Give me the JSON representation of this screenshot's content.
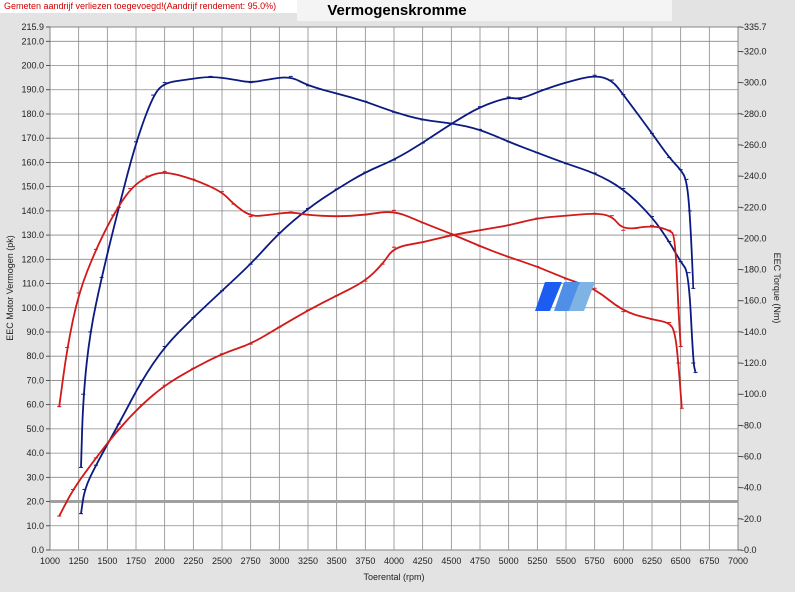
{
  "chart_data": {
    "type": "line",
    "title": "Vermogenskromme",
    "note": "Gemeten aandrijf verliezen toegevoegd!(Aandrijf rendement: 95.0%)",
    "xlabel": "Toerental (rpm)",
    "ylabel_left": "EEC Motor Vermogen (pk)",
    "ylabel_right": "EEC Torque (Nm)",
    "xlim": [
      1000,
      7000
    ],
    "ylim_left": [
      0,
      215.9
    ],
    "ylim_right": [
      0,
      335.7
    ],
    "x_ticks": [
      "1000",
      "1250",
      "1500",
      "1750",
      "2000",
      "2250",
      "2500",
      "2750",
      "3000",
      "3250",
      "3500",
      "3750",
      "4000",
      "4250",
      "4500",
      "4750",
      "5000",
      "5250",
      "5500",
      "5750",
      "6000",
      "6250",
      "6500",
      "6750",
      "7000"
    ],
    "y_ticks_left": [
      "215.9",
      "210.0",
      "200.0",
      "190.0",
      "180.0",
      "170.0",
      "160.0",
      "150.0",
      "140.0",
      "130.0",
      "120.0",
      "110.0",
      "100.0",
      "90.0",
      "80.0",
      "70.0",
      "60.0",
      "50.0",
      "40.0",
      "30.0",
      "20.0",
      "10.0",
      "0.0"
    ],
    "y_ticks_right": [
      "335.7",
      "320.0",
      "300.0",
      "280.0",
      "260.0",
      "240.0",
      "220.0",
      "200.0",
      "180.0",
      "160.0",
      "140.0",
      "120.0",
      "100.0",
      "80.0",
      "60.0",
      "40.0",
      "20.0",
      "0.0"
    ],
    "reference_line_left": 20,
    "grid": true,
    "series": [
      {
        "axis": "right",
        "color": "#0a1a80",
        "values": [
          [
            1270,
            53
          ],
          [
            1290,
            100
          ],
          [
            1350,
            140
          ],
          [
            1450,
            175
          ],
          [
            1600,
            220
          ],
          [
            1750,
            262
          ],
          [
            1900,
            292
          ],
          [
            2000,
            300
          ],
          [
            2200,
            302
          ],
          [
            2400,
            304
          ],
          [
            2600,
            302
          ],
          [
            2750,
            300
          ],
          [
            2900,
            302
          ],
          [
            3100,
            304
          ],
          [
            3250,
            298
          ],
          [
            3500,
            293
          ],
          [
            3750,
            288
          ],
          [
            4000,
            281
          ],
          [
            4250,
            276
          ],
          [
            4500,
            274
          ],
          [
            4750,
            270
          ],
          [
            5000,
            262
          ],
          [
            5250,
            255
          ],
          [
            5500,
            248
          ],
          [
            5750,
            242
          ],
          [
            6000,
            232
          ],
          [
            6250,
            214
          ],
          [
            6400,
            198
          ],
          [
            6500,
            185
          ],
          [
            6570,
            178
          ],
          [
            6610,
            120
          ],
          [
            6630,
            114
          ]
        ]
      },
      {
        "axis": "left",
        "color": "#0a1a80",
        "values": [
          [
            1270,
            15
          ],
          [
            1300,
            25
          ],
          [
            1400,
            35
          ],
          [
            1600,
            52
          ],
          [
            1800,
            70
          ],
          [
            2000,
            84
          ],
          [
            2250,
            96
          ],
          [
            2500,
            107
          ],
          [
            2750,
            118
          ],
          [
            3000,
            131
          ],
          [
            3250,
            141
          ],
          [
            3500,
            149
          ],
          [
            3750,
            156
          ],
          [
            4000,
            161
          ],
          [
            4250,
            168
          ],
          [
            4500,
            176
          ],
          [
            4750,
            183
          ],
          [
            5000,
            187
          ],
          [
            5100,
            186
          ],
          [
            5300,
            190
          ],
          [
            5500,
            193
          ],
          [
            5750,
            196
          ],
          [
            5900,
            194
          ],
          [
            6000,
            188
          ],
          [
            6250,
            172
          ],
          [
            6400,
            162
          ],
          [
            6500,
            157
          ],
          [
            6550,
            153
          ],
          [
            6580,
            140
          ],
          [
            6610,
            108
          ]
        ]
      },
      {
        "axis": "right",
        "color": "#d11a1a",
        "values": [
          [
            1080,
            92
          ],
          [
            1150,
            130
          ],
          [
            1250,
            165
          ],
          [
            1400,
            193
          ],
          [
            1550,
            215
          ],
          [
            1700,
            232
          ],
          [
            1850,
            240
          ],
          [
            2000,
            243
          ],
          [
            2250,
            238
          ],
          [
            2500,
            230
          ],
          [
            2600,
            222
          ],
          [
            2750,
            214
          ],
          [
            2900,
            215
          ],
          [
            3100,
            217
          ],
          [
            3250,
            215
          ],
          [
            3500,
            214
          ],
          [
            3750,
            215
          ],
          [
            4000,
            218
          ],
          [
            4250,
            210
          ],
          [
            4500,
            203
          ],
          [
            4750,
            195
          ],
          [
            5000,
            188
          ],
          [
            5250,
            182
          ],
          [
            5500,
            174
          ],
          [
            5750,
            168
          ],
          [
            6000,
            153
          ],
          [
            6250,
            148
          ],
          [
            6400,
            146
          ],
          [
            6450,
            140
          ],
          [
            6480,
            120
          ],
          [
            6510,
            91
          ]
        ]
      },
      {
        "axis": "left",
        "color": "#d11a1a",
        "values": [
          [
            1080,
            14
          ],
          [
            1200,
            25
          ],
          [
            1400,
            38
          ],
          [
            1600,
            50
          ],
          [
            1800,
            60
          ],
          [
            2000,
            68
          ],
          [
            2250,
            75
          ],
          [
            2500,
            81
          ],
          [
            2750,
            85
          ],
          [
            3000,
            92
          ],
          [
            3250,
            99
          ],
          [
            3500,
            105
          ],
          [
            3750,
            111
          ],
          [
            3900,
            118
          ],
          [
            4000,
            125
          ],
          [
            4250,
            127
          ],
          [
            4500,
            130
          ],
          [
            4750,
            132
          ],
          [
            5000,
            134
          ],
          [
            5250,
            137
          ],
          [
            5500,
            138
          ],
          [
            5750,
            139
          ],
          [
            5900,
            138
          ],
          [
            6000,
            132
          ],
          [
            6250,
            134
          ],
          [
            6400,
            132
          ],
          [
            6450,
            130
          ],
          [
            6480,
            100
          ],
          [
            6500,
            84
          ]
        ]
      }
    ]
  }
}
